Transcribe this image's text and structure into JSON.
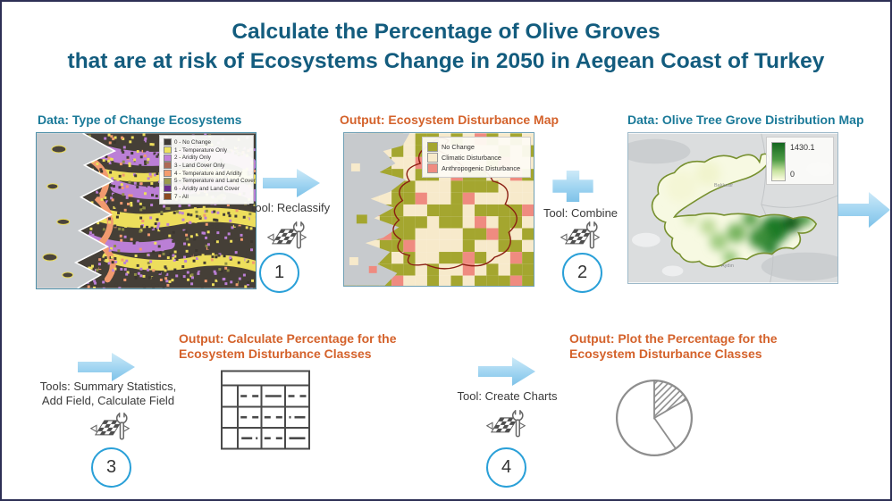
{
  "title": {
    "line1": "Calculate the Percentage of Olive Groves",
    "line2": "that are at risk of Ecosystems Change in 2050 in Aegean Coast of Turkey"
  },
  "panels": {
    "change_ecosystems": {
      "label": "Data: Type of Change Ecosystems",
      "legend": [
        {
          "label": "0 - No Change",
          "color": "#3F3A36"
        },
        {
          "label": "1 - Temperature Only",
          "color": "#EFE35E"
        },
        {
          "label": "2 - Aridity Only",
          "color": "#C17FD9"
        },
        {
          "label": "3 - Land Cover Only",
          "color": "#AD6A56"
        },
        {
          "label": "4 - Temperature and Aridity",
          "color": "#F49D6E"
        },
        {
          "label": "5 - Temperature and Land Cover",
          "color": "#9A9A4D"
        },
        {
          "label": "6 - Aridity and Land Cover",
          "color": "#6B2D91"
        },
        {
          "label": "7 - All",
          "color": "#8C4A21"
        }
      ]
    },
    "disturbance_map": {
      "label": "Output: Ecosystem Disturbance Map",
      "legend": [
        {
          "label": "No Change",
          "color": "#A4A62F"
        },
        {
          "label": "Climatic Disturbance",
          "color": "#F7EACB"
        },
        {
          "label": "Anthropogenic Disturbance",
          "color": "#EF8B80"
        }
      ]
    },
    "olive_distribution": {
      "label": "Data: Olive Tree Grove Distribution Map",
      "legend_max": "1430.1",
      "legend_min": "0",
      "places": [
        "Balıkesir",
        "Aydın"
      ]
    },
    "table_output": {
      "label_line1": "Output: Calculate Percentage for the",
      "label_line2": "Ecosystem Disturbance Classes"
    },
    "pie_output": {
      "label_line1": "Output: Plot the Percentage for the",
      "label_line2": "Ecosystem Disturbance Classes"
    }
  },
  "steps": {
    "s1": {
      "number": "1",
      "label": "Tool: Reclassify"
    },
    "s2": {
      "number": "2",
      "label": "Tool: Combine"
    },
    "s3": {
      "number": "3",
      "label_line1": "Tools: Summary Statistics,",
      "label_line2": "Add Field, Calculate Field"
    },
    "s4": {
      "number": "4",
      "label": "Tool: Create Charts"
    }
  },
  "colors": {
    "title": "#135C7E",
    "data_label": "#1B7A99",
    "output_label": "#D4622B",
    "arrow_fill": "#9FD4F1",
    "step_circle_border": "#2AA0D8",
    "disturbance_boundary": "#8B1E12"
  }
}
